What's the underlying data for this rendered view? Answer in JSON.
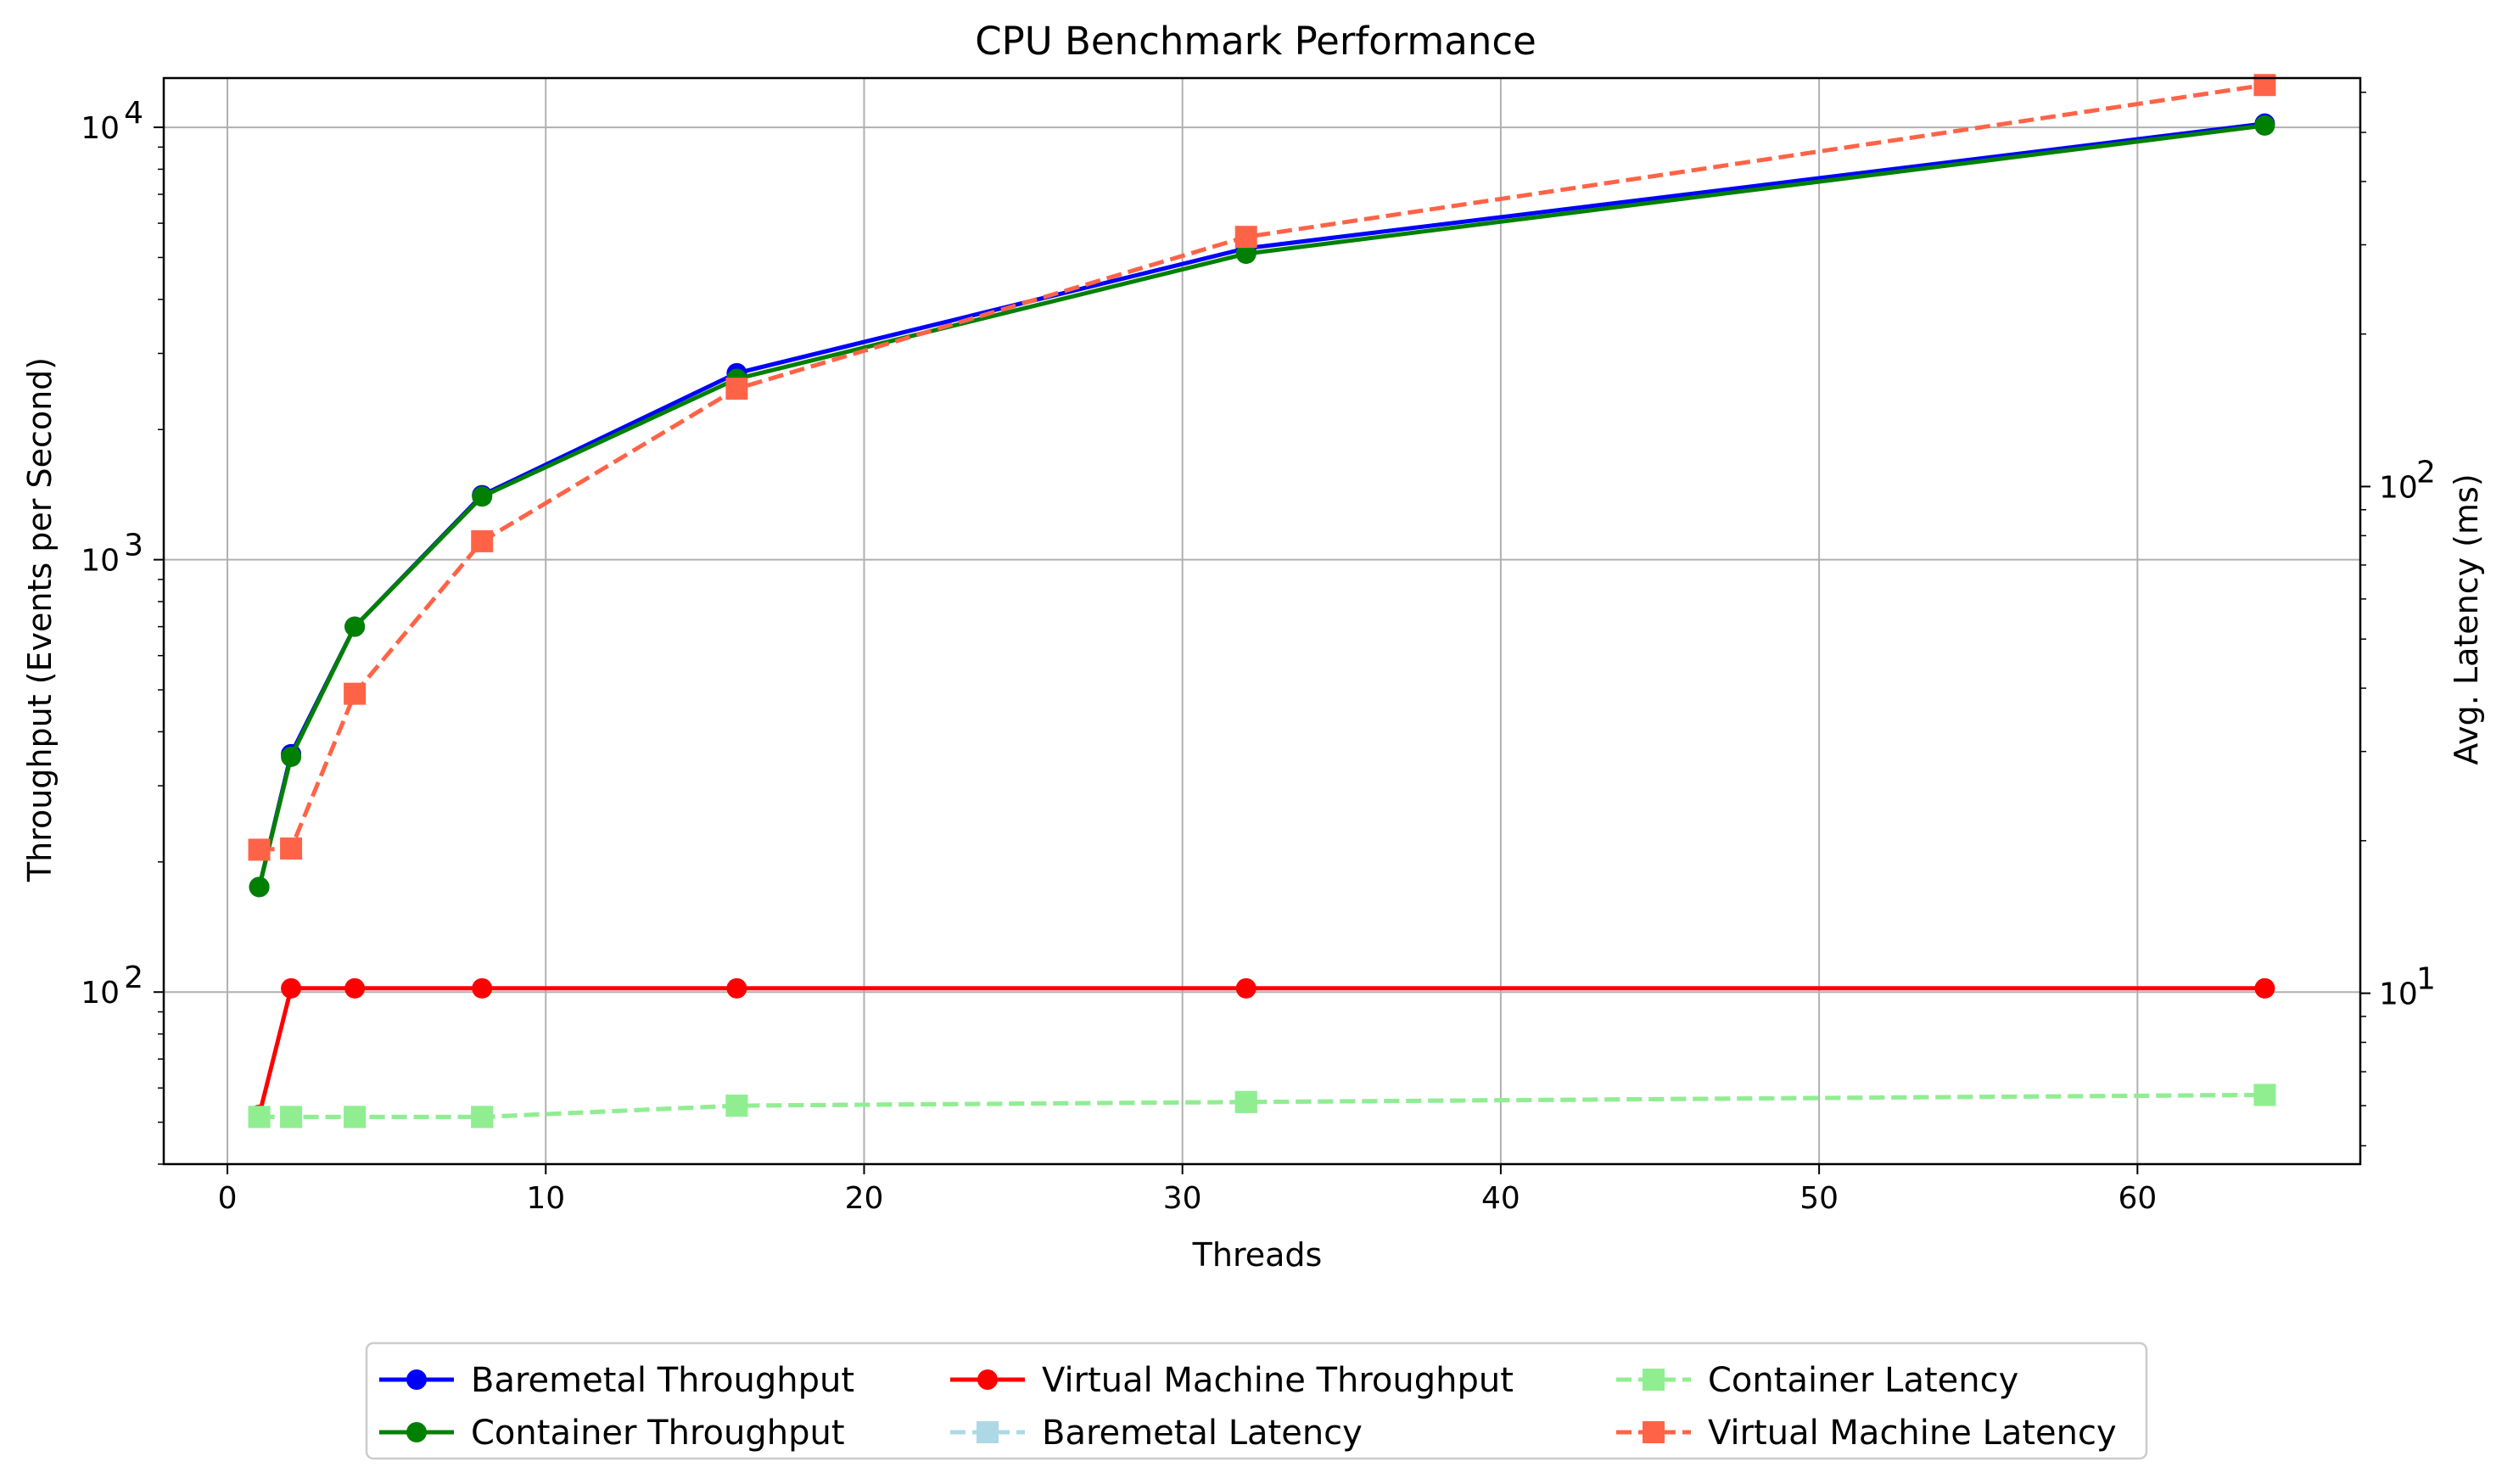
{
  "chart_data": {
    "type": "line",
    "title": "CPU Benchmark Performance",
    "xlabel": "Threads",
    "ylabel": "Throughput (Events per Second)",
    "y2label": "Avg. Latency (ms)",
    "xlim": [
      -2,
      67
    ],
    "ylim": [
      40,
      13000
    ],
    "y2lim": [
      4.6,
      640
    ],
    "yscale": "log",
    "y2scale": "log",
    "grid": true,
    "legend_position": "bottom-center",
    "x_ticks": [
      0,
      10,
      20,
      30,
      40,
      50,
      60
    ],
    "x_tick_labels": [
      "0",
      "10",
      "20",
      "30",
      "40",
      "50",
      "60"
    ],
    "y_ticks": [
      100,
      1000,
      10000
    ],
    "y_tick_labels": [
      {
        "base": "10",
        "exp": "2"
      },
      {
        "base": "10",
        "exp": "3"
      },
      {
        "base": "10",
        "exp": "4"
      }
    ],
    "y2_ticks": [
      10,
      100
    ],
    "y2_tick_labels": [
      {
        "base": "10",
        "exp": "1"
      },
      {
        "base": "10",
        "exp": "2"
      }
    ],
    "x": [
      1,
      2,
      4,
      8,
      16,
      32,
      64
    ],
    "series": [
      {
        "name": "Baremetal Throughput",
        "axis": "left",
        "color": "#0000ff",
        "marker": "circle",
        "linestyle": "solid",
        "values": [
          175,
          355,
          700,
          1410,
          2700,
          5250,
          10200
        ]
      },
      {
        "name": "Container Throughput",
        "axis": "left",
        "color": "#008000",
        "marker": "circle",
        "linestyle": "solid",
        "values": [
          175,
          350,
          700,
          1400,
          2620,
          5100,
          10100
        ]
      },
      {
        "name": "Virtual Machine Throughput",
        "axis": "left",
        "color": "#ff0000",
        "marker": "circle",
        "linestyle": "solid",
        "values": [
          52,
          102,
          102,
          102,
          102,
          102,
          102
        ]
      },
      {
        "name": "Baremetal Latency",
        "axis": "right",
        "color": "#add8e6",
        "marker": "square",
        "linestyle": "dashed",
        "values": [
          5.7,
          5.7,
          5.7,
          5.7,
          6.0,
          6.1,
          6.3
        ]
      },
      {
        "name": "Container Latency",
        "axis": "right",
        "color": "#90ee90",
        "marker": "square",
        "linestyle": "dashed",
        "values": [
          5.7,
          5.7,
          5.7,
          5.7,
          6.0,
          6.1,
          6.3
        ]
      },
      {
        "name": "Virtual Machine Latency",
        "axis": "right",
        "color": "#ff6347",
        "marker": "square",
        "linestyle": "dashed",
        "values": [
          19.2,
          19.3,
          39,
          78,
          156,
          311,
          620
        ]
      }
    ],
    "legend_order": [
      0,
      1,
      2,
      3,
      4,
      5
    ]
  }
}
